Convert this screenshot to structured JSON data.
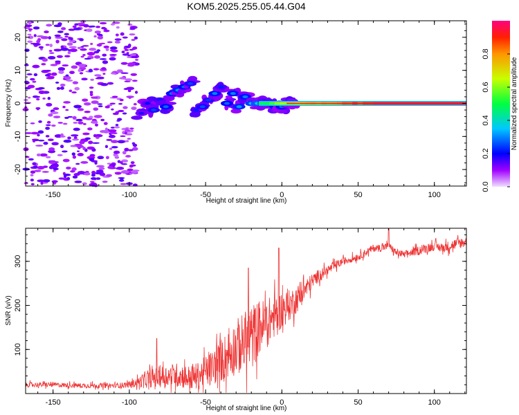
{
  "title": "KOM5.2025.255.05.44.G04",
  "chart_data": [
    {
      "type": "heatmap",
      "name": "spectrogram",
      "xlabel": "Height of straight line (km)",
      "ylabel": "Frequency (Hz)",
      "xlim": [
        -168,
        121
      ],
      "ylim": [
        -25,
        25
      ],
      "xticks": [
        -150,
        -100,
        -50,
        0,
        50,
        100
      ],
      "yticks": [
        -20,
        -10,
        0,
        10,
        20
      ],
      "colorbar": {
        "label": "Normalized spectral amplitude",
        "ticks": [
          "0.0",
          "0.2",
          "0.4",
          "0.6",
          "0.8"
        ],
        "range": [
          0,
          1
        ]
      },
      "features": {
        "noise_region_x": [
          -168,
          -95
        ],
        "transition_region_x": [
          -95,
          -15
        ],
        "tone_region_x": [
          -15,
          121
        ],
        "tone_frequency_hz": 0.0
      },
      "clusters": [
        {
          "x": -92,
          "y": -3,
          "a": 0.18
        },
        {
          "x": -88,
          "y": 0,
          "a": 0.2
        },
        {
          "x": -84,
          "y": -2,
          "a": 0.25
        },
        {
          "x": -80,
          "y": 1,
          "a": 0.22
        },
        {
          "x": -76,
          "y": -1,
          "a": 0.28
        },
        {
          "x": -72,
          "y": 3,
          "a": 0.3
        },
        {
          "x": -68,
          "y": 4,
          "a": 0.32
        },
        {
          "x": -64,
          "y": 5,
          "a": 0.28
        },
        {
          "x": -60,
          "y": 6,
          "a": 0.25
        },
        {
          "x": -56,
          "y": -2,
          "a": 0.22
        },
        {
          "x": -52,
          "y": -1,
          "a": 0.26
        },
        {
          "x": -48,
          "y": 1,
          "a": 0.24
        },
        {
          "x": -44,
          "y": 3,
          "a": 0.3
        },
        {
          "x": -40,
          "y": 5,
          "a": 0.22
        },
        {
          "x": -36,
          "y": 0,
          "a": 0.28
        },
        {
          "x": -32,
          "y": 3,
          "a": 0.3
        },
        {
          "x": -28,
          "y": -1,
          "a": 0.32
        },
        {
          "x": -24,
          "y": 2,
          "a": 0.3
        },
        {
          "x": -20,
          "y": 0,
          "a": 0.35
        },
        {
          "x": -16,
          "y": 0,
          "a": 0.38
        },
        {
          "x": -12,
          "y": 0,
          "a": 0.4
        },
        {
          "x": -8,
          "y": 0,
          "a": 0.36
        },
        {
          "x": -4,
          "y": -1,
          "a": 0.3
        },
        {
          "x": 0,
          "y": -1,
          "a": 0.28
        },
        {
          "x": 4,
          "y": 0,
          "a": 0.35
        },
        {
          "x": 8,
          "y": 0,
          "a": 0.38
        }
      ]
    },
    {
      "type": "line",
      "name": "snr",
      "xlabel": "Height of straight line (km)",
      "ylabel": "SNR (v/v)",
      "xlim": [
        -168,
        121
      ],
      "ylim": [
        0,
        375
      ],
      "xticks": [
        -150,
        -100,
        -50,
        0,
        50,
        100
      ],
      "yticks": [
        100,
        200,
        300
      ],
      "color": "#ee3333",
      "series": [
        {
          "name": "SNR",
          "x": [
            -168,
            -150,
            -130,
            -110,
            -100,
            -95,
            -90,
            -85,
            -80,
            -75,
            -70,
            -65,
            -60,
            -55,
            -50,
            -45,
            -40,
            -35,
            -30,
            -25,
            -20,
            -15,
            -10,
            -5,
            0,
            5,
            10,
            15,
            20,
            25,
            30,
            35,
            40,
            45,
            50,
            55,
            60,
            65,
            70,
            75,
            80,
            85,
            90,
            95,
            100,
            105,
            110,
            115,
            121
          ],
          "values": [
            20,
            20,
            18,
            18,
            20,
            25,
            30,
            35,
            38,
            40,
            42,
            40,
            35,
            40,
            50,
            60,
            75,
            90,
            105,
            115,
            125,
            150,
            160,
            175,
            190,
            200,
            215,
            235,
            255,
            270,
            280,
            290,
            300,
            305,
            310,
            320,
            330,
            330,
            335,
            320,
            315,
            320,
            325,
            330,
            335,
            330,
            335,
            340,
            345
          ],
          "spread": [
            8,
            8,
            8,
            8,
            10,
            15,
            25,
            30,
            35,
            35,
            40,
            40,
            40,
            45,
            50,
            60,
            70,
            80,
            90,
            100,
            110,
            90,
            80,
            70,
            60,
            50,
            45,
            35,
            25,
            20,
            15,
            15,
            12,
            12,
            12,
            12,
            12,
            12,
            12,
            12,
            12,
            12,
            15,
            15,
            15,
            15,
            18,
            18,
            18
          ]
        }
      ],
      "spikes": [
        {
          "x": -82,
          "y": 125
        },
        {
          "x": -22,
          "y": 285
        },
        {
          "x": -2,
          "y": 330
        },
        {
          "x": 70,
          "y": 375
        }
      ]
    }
  ]
}
